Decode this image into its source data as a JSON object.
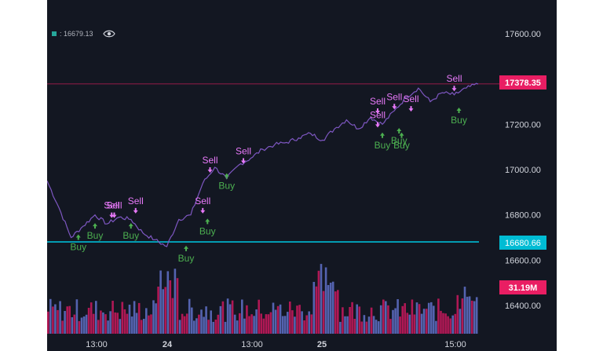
{
  "legend": {
    "value_text": ": 16679.13",
    "swatch_color": "#26a69a",
    "eye_icon": "eye-icon"
  },
  "price_axis": {
    "ticks": [
      "17600.00",
      "17400.00",
      "17200.00",
      "17000.00",
      "16800.00",
      "16600.00",
      "16400.00"
    ],
    "tick_values": [
      17600,
      17400,
      17200,
      17000,
      16800,
      16600,
      16400
    ]
  },
  "time_axis": {
    "ticks": [
      "13:00",
      "24",
      "13:00",
      "25",
      "15:00"
    ],
    "bold": [
      false,
      true,
      false,
      true,
      false
    ]
  },
  "price_labels": {
    "last_price": "17378.35",
    "last_price_color": "#e91e63",
    "indicator_price": "16680.66",
    "indicator_color": "#00bcd4",
    "volume": "31.19M",
    "volume_color": "#e91e63"
  },
  "colors": {
    "background": "#131722",
    "price_line": "#7e57c2",
    "up_volume": "#5c6bc0",
    "down_volume": "#c2185b",
    "buy_color": "#4caf50",
    "sell_color": "#e879f9",
    "axis_text": "#d1d4dc"
  },
  "chart_data": {
    "type": "line",
    "series": [
      {
        "name": "",
        "x": [
          "23 10:00",
          "23 11:00",
          "23 12:00",
          "23 13:00",
          "23 14:00",
          "23 15:00",
          "23 16:00",
          "23 17:00",
          "23 18:00",
          "23 19:00",
          "23 20:00",
          "23 21:00",
          "23 22:00",
          "24 00:00",
          "24 02:00",
          "24 04:00",
          "24 06:00",
          "24 08:00",
          "24 10:00",
          "24 12:00",
          "24 14:00",
          "24 16:00",
          "24 18:00",
          "24 20:00",
          "24 22:00",
          "25 00:00",
          "25 02:00",
          "25 04:00",
          "25 06:00",
          "25 08:00",
          "25 10:00",
          "25 12:00",
          "25 13:00",
          "25 14:00",
          "25 15:00",
          "25 16:00",
          "25 17:00"
        ],
        "values": [
          16950,
          16830,
          16700,
          16750,
          16800,
          16760,
          16790,
          16780,
          16720,
          16690,
          16660,
          16780,
          16800,
          16940,
          17010,
          16960,
          17020,
          17050,
          17090,
          17110,
          17120,
          17140,
          17160,
          17130,
          17180,
          17220,
          17180,
          17230,
          17200,
          17260,
          17320,
          17360,
          17300,
          17340,
          17330,
          17360,
          17378
        ]
      }
    ],
    "signals": [
      {
        "type": "Buy",
        "x": "23 13:00",
        "y": 16700
      },
      {
        "type": "Buy",
        "x": "23 14:00",
        "y": 16750
      },
      {
        "type": "Sell",
        "x": "23 15:00",
        "y": 16800
      },
      {
        "type": "Sell",
        "x": "23 16:00",
        "y": 16800
      },
      {
        "type": "Buy",
        "x": "23 17:00",
        "y": 16750
      },
      {
        "type": "Sell",
        "x": "23 17:00",
        "y": 16820
      },
      {
        "type": "Buy",
        "x": "23 22:00",
        "y": 16650
      },
      {
        "type": "Sell",
        "x": "24 00:00",
        "y": 16820
      },
      {
        "type": "Buy",
        "x": "24 00:00",
        "y": 16770
      },
      {
        "type": "Sell",
        "x": "24 02:00",
        "y": 17000
      },
      {
        "type": "Buy",
        "x": "24 04:00",
        "y": 16970
      },
      {
        "type": "Sell",
        "x": "24 06:00",
        "y": 17040
      },
      {
        "type": "Sell",
        "x": "25 06:00",
        "y": 17260
      },
      {
        "type": "Sell",
        "x": "25 08:00",
        "y": 17280
      },
      {
        "type": "Sell",
        "x": "25 10:00",
        "y": 17270
      },
      {
        "type": "Sell",
        "x": "25 06:00",
        "y": 17200
      },
      {
        "type": "Buy",
        "x": "25 06:00",
        "y": 17150
      },
      {
        "type": "Buy",
        "x": "25 08:00",
        "y": 17170
      },
      {
        "type": "Buy",
        "x": "25 10:00",
        "y": 17150
      },
      {
        "type": "Sell",
        "x": "25 15:00",
        "y": 17360
      },
      {
        "type": "Buy",
        "x": "25 15:00",
        "y": 17260
      }
    ],
    "indicator_line": {
      "value": 16680.66
    },
    "last_price_line": {
      "value": 17378.35
    },
    "volume_label": "31.19M",
    "ylim": [
      16400,
      17700
    ],
    "grid": false
  }
}
